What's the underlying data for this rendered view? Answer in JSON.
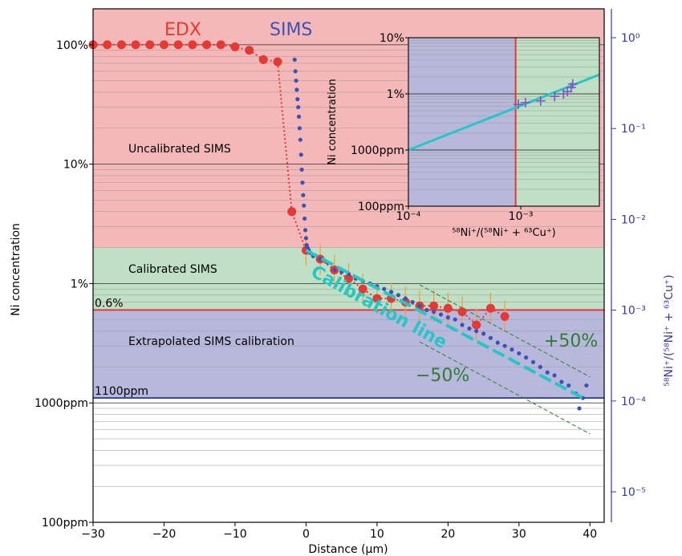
{
  "chart_data": {
    "type": "scatter",
    "xlabel": "Distance (μm)",
    "ylabel": "Ni concentration",
    "ylabel_right": "⁵⁸Ni⁺/(⁵⁸Ni⁺ + ⁶³Cu⁺)",
    "xlim": [
      -30,
      42
    ],
    "ylim": [
      0.0001,
      2.0
    ],
    "yscale": "log",
    "x_ticks": [
      "−30",
      "−20",
      "−10",
      "0",
      "10",
      "20",
      "30",
      "40"
    ],
    "y_ticks": [
      "100ppm",
      "1000ppm",
      "1%",
      "10%",
      "100%"
    ],
    "right_ticks": [
      "10⁻⁵",
      "10⁻⁴",
      "10⁻³",
      "10⁻²",
      "10⁻¹",
      "10⁰"
    ],
    "grid": true,
    "bands": [
      {
        "label": "Uncalibrated SIMS",
        "from": 0.02,
        "to": 2.0,
        "color": "#f4b8b8"
      },
      {
        "label": "Calibrated SIMS",
        "from": 0.006,
        "to": 0.02,
        "color": "#bfe0c4"
      },
      {
        "label": "Extrapolated SIMS calibration",
        "from": 0.0011,
        "to": 0.006,
        "color": "#b8b8dc"
      }
    ],
    "hlines": [
      {
        "label": "0.6%",
        "y": 0.006,
        "color": "#e53935"
      },
      {
        "label": "1100ppm",
        "y": 0.0011,
        "color": "#3949ab"
      }
    ],
    "annotations": {
      "edx": "EDX",
      "sims": "SIMS",
      "calibration_line": "Calibration line",
      "plus50": "+50%",
      "minus50": "−50%"
    },
    "series": [
      {
        "name": "EDX",
        "color": "#e53935",
        "x": [
          -30,
          -28,
          -26,
          -24,
          -22,
          -20,
          -18,
          -16,
          -14,
          -12,
          -10,
          -8,
          -6,
          -4,
          -2,
          0,
          2,
          4,
          6,
          8,
          10,
          12,
          14,
          16,
          18,
          20,
          22,
          24,
          26,
          28
        ],
        "y": [
          1.0,
          1.0,
          1.0,
          1.0,
          1.0,
          1.0,
          1.0,
          1.0,
          1.0,
          1.0,
          0.96,
          0.9,
          0.75,
          0.72,
          0.04,
          0.019,
          0.016,
          0.013,
          0.011,
          0.009,
          0.0075,
          0.0075,
          0.007,
          0.0065,
          0.0065,
          0.0062,
          0.0058,
          0.0045,
          0.0062,
          0.0053
        ]
      },
      {
        "name": "SIMS",
        "color": "#3f51b5",
        "x": [
          -1.6,
          -1.5,
          -1.4,
          -1.3,
          -1.2,
          -1.1,
          -1.0,
          -0.9,
          -0.8,
          -0.7,
          -0.6,
          -0.5,
          -0.4,
          -0.3,
          -0.2,
          -0.1,
          0.0,
          0.1,
          0.2,
          0.4,
          0.6,
          1,
          2,
          3,
          4,
          5,
          6,
          7,
          8,
          9,
          10,
          11,
          12,
          13,
          14,
          15,
          16,
          17,
          18,
          19,
          20,
          21,
          22,
          23,
          24,
          25,
          26,
          27,
          28,
          29,
          30,
          31,
          32,
          33,
          34,
          35,
          36,
          37,
          38,
          38.5,
          39,
          39.5
        ],
        "y": [
          0.75,
          0.6,
          0.5,
          0.42,
          0.35,
          0.3,
          0.25,
          0.2,
          0.16,
          0.12,
          0.09,
          0.07,
          0.055,
          0.045,
          0.035,
          0.028,
          0.024,
          0.021,
          0.02,
          0.019,
          0.018,
          0.017,
          0.016,
          0.015,
          0.013,
          0.0125,
          0.012,
          0.011,
          0.0105,
          0.01,
          0.0095,
          0.009,
          0.0085,
          0.008,
          0.0075,
          0.007,
          0.0065,
          0.006,
          0.0058,
          0.0055,
          0.0052,
          0.005,
          0.0045,
          0.0042,
          0.004,
          0.0038,
          0.0035,
          0.0032,
          0.003,
          0.0028,
          0.0026,
          0.0024,
          0.0022,
          0.002,
          0.0018,
          0.0017,
          0.0015,
          0.0014,
          0.0012,
          0.0009,
          0.0011,
          0.0014
        ]
      }
    ],
    "inset": {
      "xlabel": "⁵⁸Ni⁺/(⁵⁸Ni⁺ + ⁶³Cu⁺)",
      "ylabel": "Ni concentration",
      "xscale": "log",
      "yscale": "log",
      "xlim": [
        0.0001,
        0.005
      ],
      "ylim": [
        0.0001,
        0.1
      ],
      "x_ticks": [
        "10⁻⁴",
        "10⁻³"
      ],
      "y_ticks": [
        "100ppm",
        "1000ppm",
        "1%",
        "10%"
      ],
      "vline_x": 0.0009,
      "points_x": [
        0.00095,
        0.0011,
        0.0015,
        0.002,
        0.0024,
        0.0026,
        0.0028,
        0.0029
      ],
      "points_y": [
        0.0065,
        0.007,
        0.0075,
        0.009,
        0.01,
        0.011,
        0.013,
        0.015
      ]
    }
  }
}
